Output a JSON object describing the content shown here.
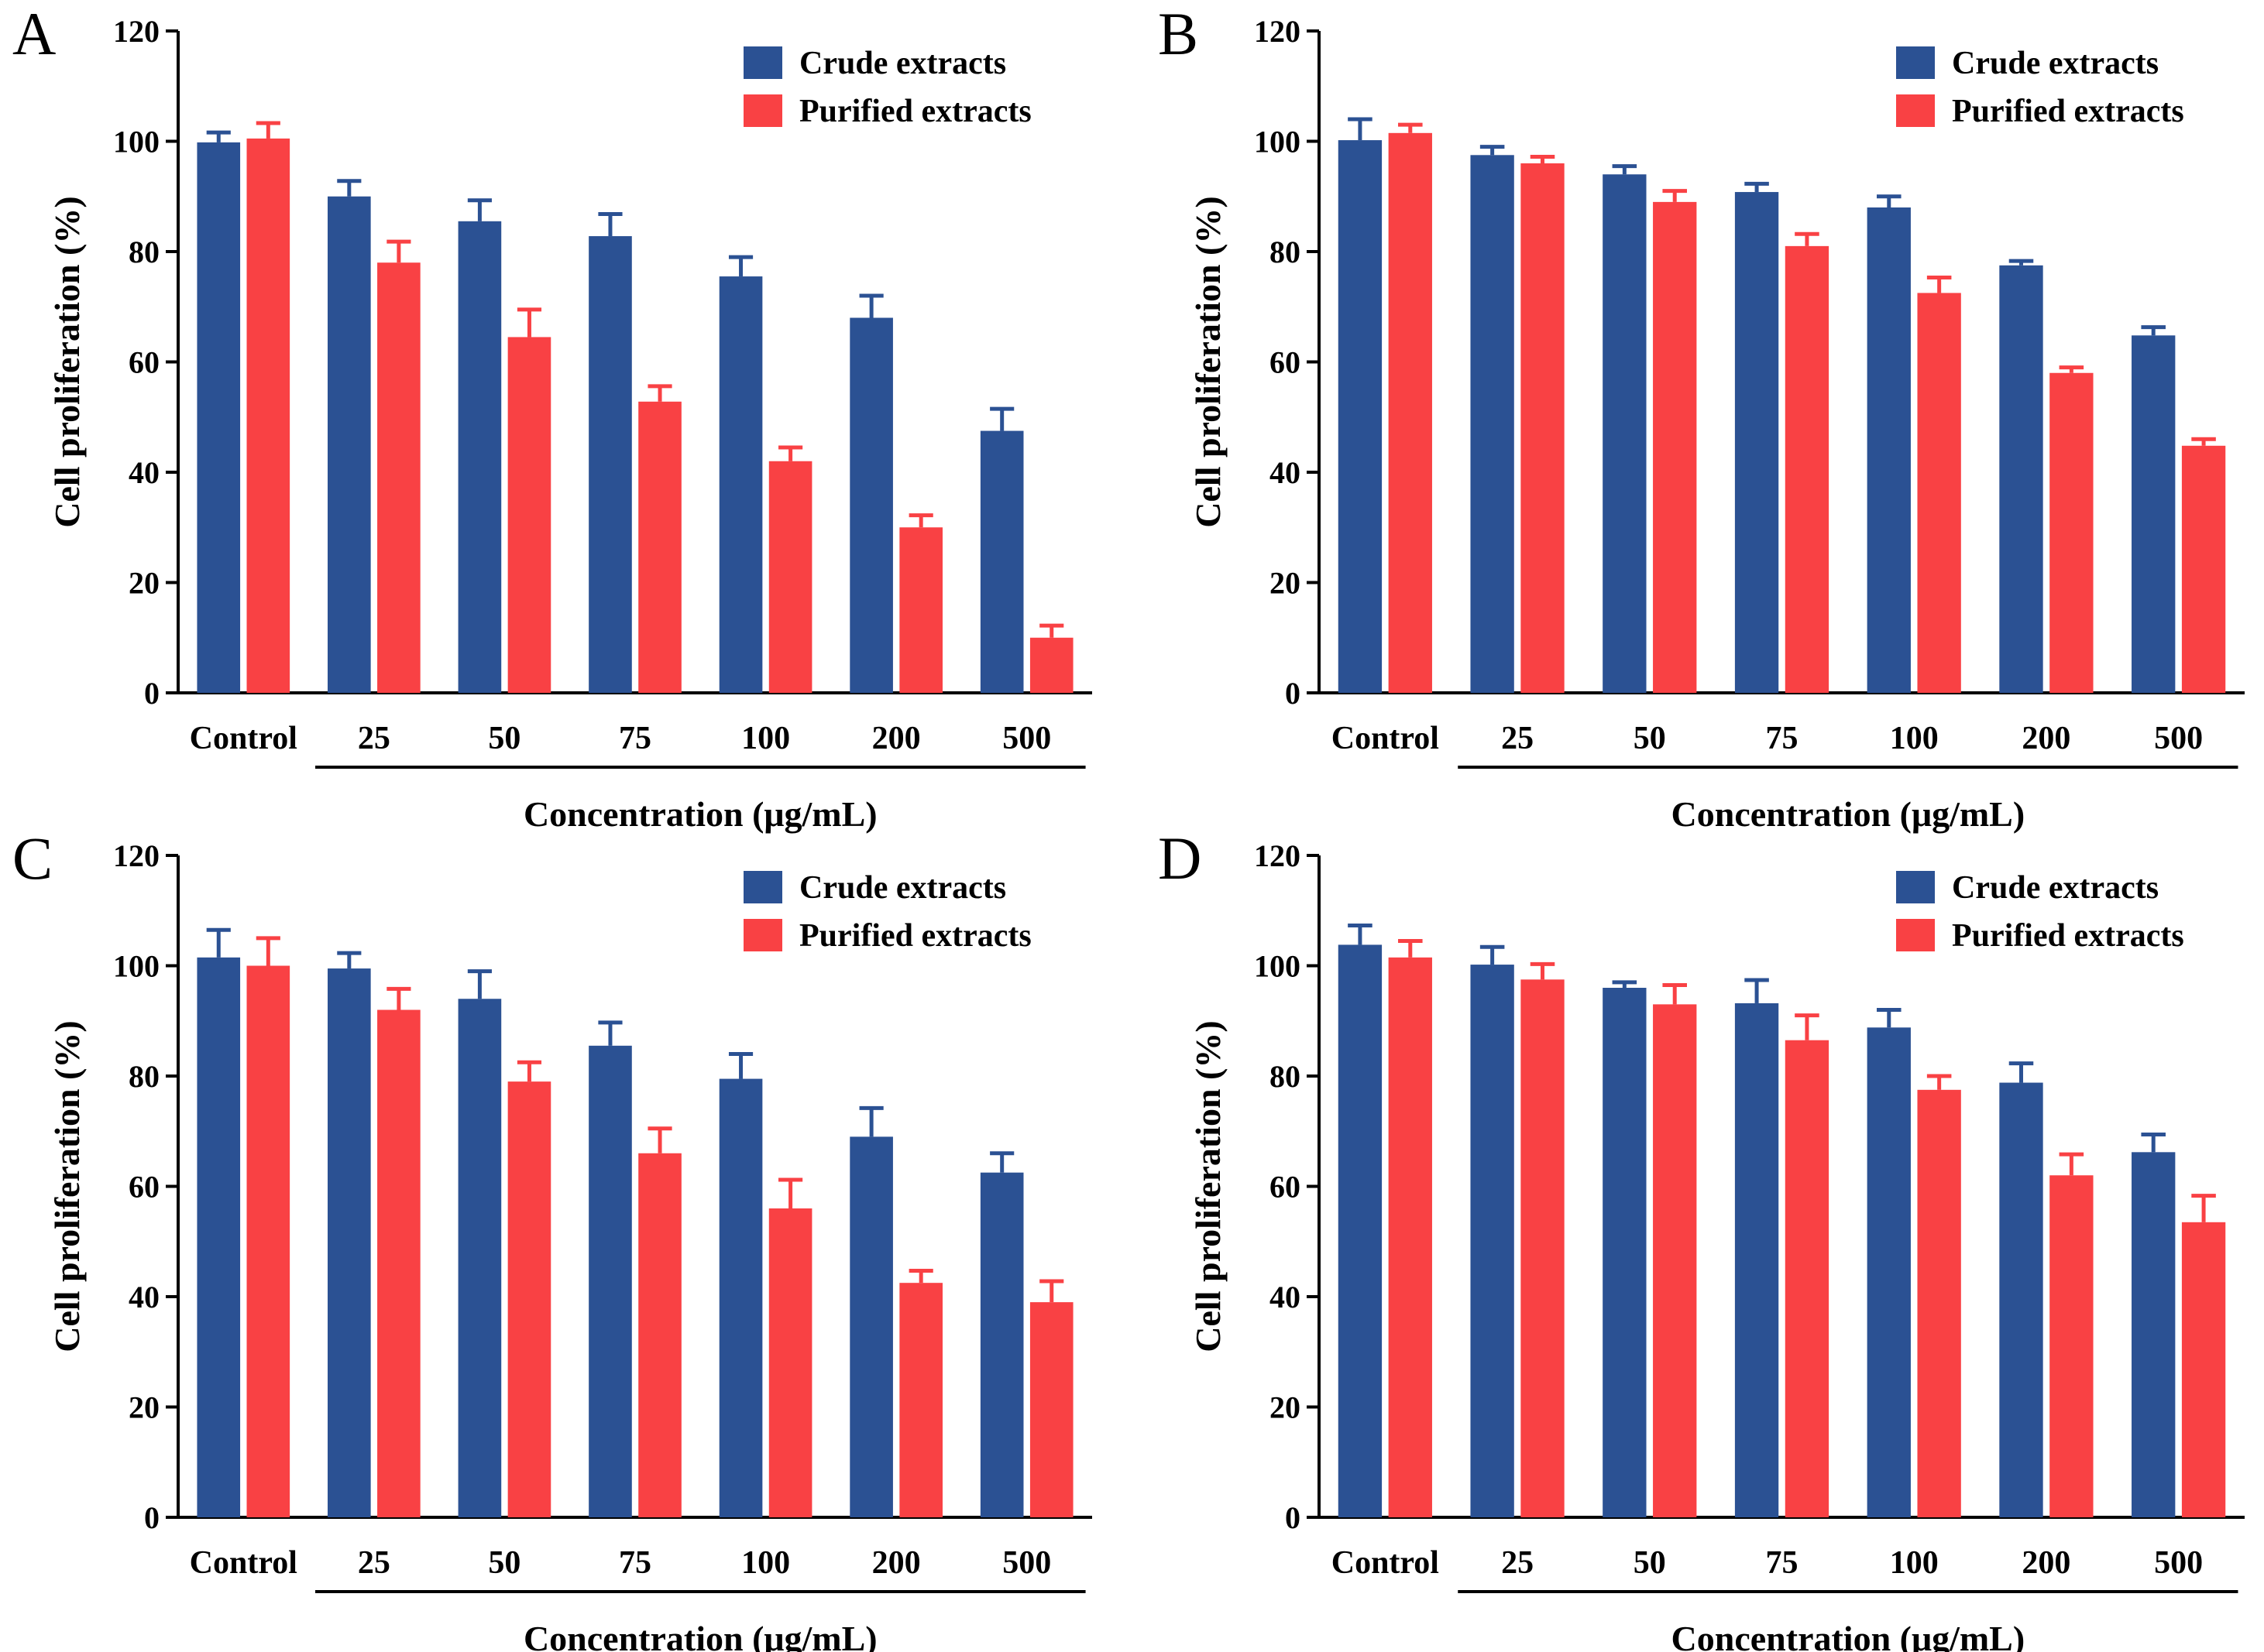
{
  "colors": {
    "crude": "#2b5193",
    "purified": "#f94144",
    "axis": "#000000"
  },
  "chart_data": [
    {
      "panel": "A",
      "type": "bar",
      "categories": [
        "Control",
        "25",
        "50",
        "75",
        "100",
        "200",
        "500"
      ],
      "xlabel": "Concentration (μg/mL)",
      "ylabel": "Cell proliferation (%)",
      "ylim": [
        0,
        120
      ],
      "yticks": [
        0,
        20,
        40,
        60,
        80,
        100,
        120
      ],
      "legend": "top-right",
      "series": [
        {
          "name": "Crude extracts",
          "color": "#2b5193",
          "values": [
            99.8,
            90.0,
            85.5,
            82.8,
            75.5,
            68.0,
            47.5
          ],
          "errors": [
            1.8,
            2.8,
            3.8,
            4.0,
            3.5,
            4.0,
            4.0
          ]
        },
        {
          "name": "Purified extracts",
          "color": "#f94144",
          "values": [
            100.5,
            78.0,
            64.5,
            52.8,
            42.0,
            30.0,
            10.0
          ],
          "errors": [
            2.8,
            3.8,
            5.0,
            2.8,
            2.5,
            2.2,
            2.2
          ]
        }
      ]
    },
    {
      "panel": "B",
      "type": "bar",
      "categories": [
        "Control",
        "25",
        "50",
        "75",
        "100",
        "200",
        "500"
      ],
      "xlabel": "Concentration (μg/mL)",
      "ylabel": "Cell proliferation (%)",
      "ylim": [
        0,
        120
      ],
      "yticks": [
        0,
        20,
        40,
        60,
        80,
        100,
        120
      ],
      "legend": "top-right",
      "series": [
        {
          "name": "Crude extracts",
          "color": "#2b5193",
          "values": [
            100.2,
            97.5,
            94.0,
            90.8,
            88.0,
            77.5,
            64.8
          ],
          "errors": [
            3.8,
            1.5,
            1.5,
            1.5,
            2.0,
            0.8,
            1.5
          ]
        },
        {
          "name": "Purified extracts",
          "color": "#f94144",
          "values": [
            101.5,
            96.0,
            89.0,
            81.0,
            72.5,
            58.0,
            44.8
          ],
          "errors": [
            1.5,
            1.2,
            2.0,
            2.2,
            2.8,
            1.0,
            1.2
          ]
        }
      ]
    },
    {
      "panel": "C",
      "type": "bar",
      "categories": [
        "Control",
        "25",
        "50",
        "75",
        "100",
        "200",
        "500"
      ],
      "xlabel": "Concentration (μg/mL)",
      "ylabel": "Cell proliferation (%)",
      "ylim": [
        0,
        120
      ],
      "yticks": [
        0,
        20,
        40,
        60,
        80,
        100,
        120
      ],
      "legend": "top-right",
      "series": [
        {
          "name": "Crude extracts",
          "color": "#2b5193",
          "values": [
            101.5,
            99.5,
            94.0,
            85.5,
            79.5,
            69.0,
            62.5
          ],
          "errors": [
            5.0,
            2.8,
            5.0,
            4.2,
            4.5,
            5.2,
            3.5
          ]
        },
        {
          "name": "Purified extracts",
          "color": "#f94144",
          "values": [
            100.0,
            92.0,
            79.0,
            66.0,
            56.0,
            42.5,
            39.0
          ],
          "errors": [
            5.0,
            3.8,
            3.5,
            4.5,
            5.2,
            2.2,
            3.8
          ]
        }
      ]
    },
    {
      "panel": "D",
      "type": "bar",
      "categories": [
        "Control",
        "25",
        "50",
        "75",
        "100",
        "200",
        "500"
      ],
      "xlabel": "Concentration (μg/mL)",
      "ylabel": "Cell proliferation (%)",
      "ylim": [
        0,
        120
      ],
      "yticks": [
        0,
        20,
        40,
        60,
        80,
        100,
        120
      ],
      "legend": "top-right",
      "series": [
        {
          "name": "Crude extracts",
          "color": "#2b5193",
          "values": [
            103.8,
            100.2,
            96.0,
            93.2,
            88.8,
            78.8,
            66.2
          ],
          "errors": [
            3.5,
            3.2,
            1.0,
            4.2,
            3.2,
            3.5,
            3.2
          ]
        },
        {
          "name": "Purified extracts",
          "color": "#f94144",
          "values": [
            101.5,
            97.5,
            93.0,
            86.5,
            77.5,
            62.0,
            53.5
          ],
          "errors": [
            3.0,
            2.8,
            3.5,
            4.5,
            2.5,
            3.8,
            4.8
          ]
        }
      ]
    }
  ]
}
